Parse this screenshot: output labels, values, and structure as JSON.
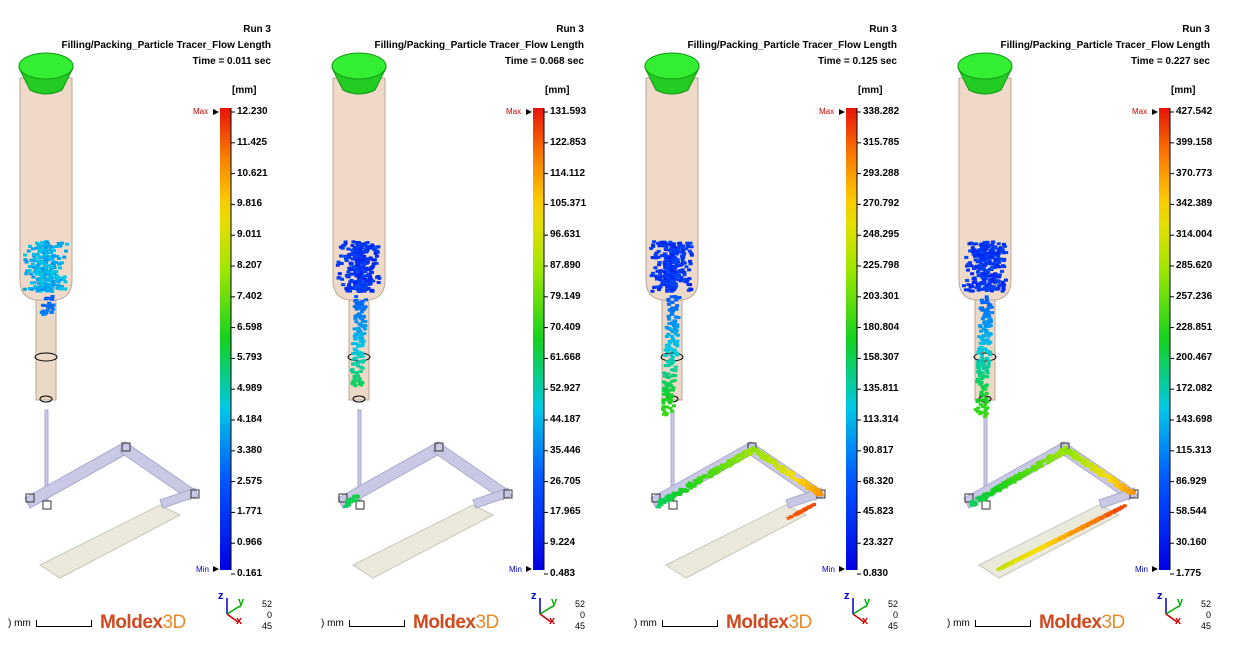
{
  "panels": [
    {
      "run": "Run 3",
      "result": "Filling/Packing_Particle Tracer_Flow Length",
      "time": "Time = 0.011 sec",
      "unit": "[mm]",
      "max_label": "Max",
      "min_label": "Min",
      "scale": [
        "12.230",
        "11.425",
        "10.621",
        "9.816",
        "9.011",
        "8.207",
        "7.402",
        "6.598",
        "5.793",
        "4.989",
        "4.184",
        "3.380",
        "2.575",
        "1.771",
        "0.966",
        "0.161"
      ],
      "fill_fraction": 0.05,
      "axis_numbers": [
        "52",
        "0",
        "45"
      ],
      "scale_bar_label": ") mm",
      "logo_a": "Moldex",
      "logo_b": "3D"
    },
    {
      "run": "Run 3",
      "result": "Filling/Packing_Particle Tracer_Flow Length",
      "time": "Time = 0.068 sec",
      "unit": "[mm]",
      "max_label": "Max",
      "min_label": "Min",
      "scale": [
        "131.593",
        "122.853",
        "114.112",
        "105.371",
        "96.631",
        "87.890",
        "79.149",
        "70.409",
        "61.668",
        "52.927",
        "44.187",
        "35.446",
        "26.705",
        "17.965",
        "9.224",
        "0.483"
      ],
      "fill_fraction": 0.25,
      "axis_numbers": [
        "52",
        "0",
        "45"
      ],
      "scale_bar_label": ") mm",
      "logo_a": "Moldex",
      "logo_b": "3D"
    },
    {
      "run": "Run 3",
      "result": "Filling/Packing_Particle Tracer_Flow Length",
      "time": "Time = 0.125 sec",
      "unit": "[mm]",
      "max_label": "Max",
      "min_label": "Min",
      "scale": [
        "338.282",
        "315.785",
        "293.288",
        "270.792",
        "248.295",
        "225.798",
        "203.301",
        "180.804",
        "158.307",
        "135.811",
        "113.314",
        "90.817",
        "68.320",
        "45.823",
        "23.327",
        "0.830"
      ],
      "fill_fraction": 0.55,
      "axis_numbers": [
        "52",
        "0",
        "45"
      ],
      "scale_bar_label": ") mm",
      "logo_a": "Moldex",
      "logo_b": "3D"
    },
    {
      "run": "Run 3",
      "result": "Filling/Packing_Particle Tracer_Flow Length",
      "time": "Time = 0.227 sec",
      "unit": "[mm]",
      "max_label": "Max",
      "min_label": "Min",
      "scale": [
        "427.542",
        "399.158",
        "370.773",
        "342.389",
        "314.004",
        "285.620",
        "257.236",
        "228.851",
        "200.467",
        "172.082",
        "143.698",
        "115.313",
        "86.929",
        "58.544",
        "30.160",
        "1.775"
      ],
      "fill_fraction": 1.0,
      "axis_numbers": [
        "52",
        "0",
        "45"
      ],
      "scale_bar_label": ") mm",
      "logo_a": "Moldex",
      "logo_b": "3D"
    }
  ],
  "axis_letters": {
    "z": "z",
    "y": "y",
    "x": "x"
  },
  "colors": {
    "top_cone": "#22cc22",
    "tube": "#efd9c8",
    "runner": "#c9c9e6",
    "part": "#ebe9dc",
    "max_text": "#cc0000",
    "min_text": "#0000cc"
  }
}
